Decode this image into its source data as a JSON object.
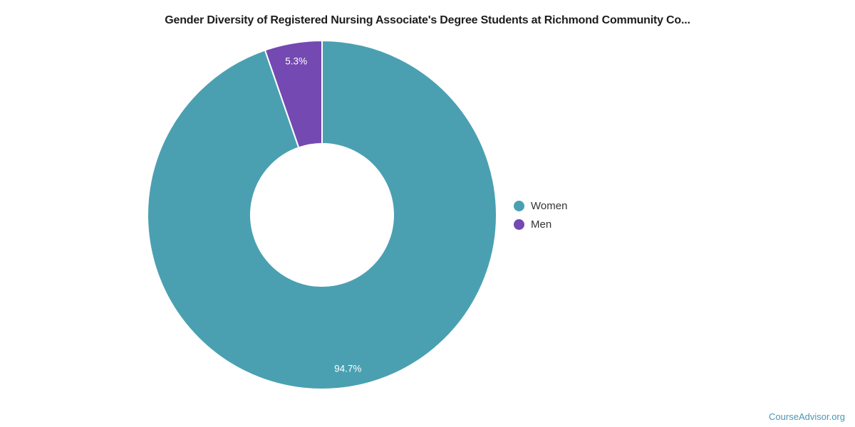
{
  "title": "Gender Diversity of Registered Nursing Associate's Degree Students at Richmond Community Co...",
  "chart_data": {
    "type": "pie",
    "subtype": "donut",
    "title": "Gender Diversity of Registered Nursing Associate's Degree Students at Richmond Community Co...",
    "categories": [
      "Women",
      "Men"
    ],
    "values": [
      94.7,
      5.3
    ],
    "value_labels": [
      "94.7%",
      "5.3%"
    ],
    "colors": [
      "#4AA0B1",
      "#7449B1"
    ],
    "start_angle_deg": 0,
    "direction": "clockwise",
    "inner_radius_ratio": 0.41,
    "slice_border_color": "#ffffff",
    "label_color": "#ffffff",
    "legend_position": "right",
    "legend": [
      "Women",
      "Men"
    ]
  },
  "legend": {
    "items": [
      {
        "label": "Women",
        "color": "#4AA0B1"
      },
      {
        "label": "Men",
        "color": "#7449B1"
      }
    ]
  },
  "footer": {
    "brand": "CourseAdvisor.org",
    "color": "#4A96B4"
  }
}
